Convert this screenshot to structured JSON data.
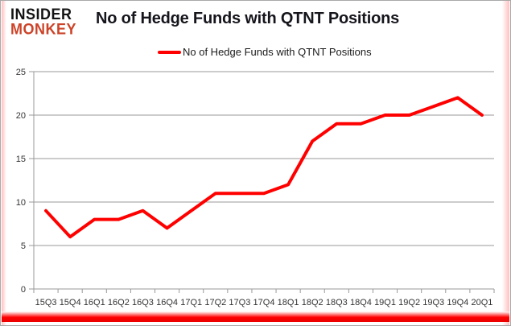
{
  "logo": {
    "line1": "INSIDER",
    "line2": "MONKEY"
  },
  "title": "No of Hedge Funds with QTNT Positions",
  "legend": {
    "label": "No of Hedge Funds with QTNT Positions"
  },
  "colors": {
    "series": "#ff0000",
    "logo_accent": "#cc4328",
    "grid": "#9a9a9a",
    "axis": "#9a9a9a",
    "axis_text": "#333333",
    "bottom_bar": "#ff0000"
  },
  "chart_data": {
    "type": "line",
    "title": "No of Hedge Funds with QTNT Positions",
    "categories": [
      "15Q3",
      "15Q4",
      "16Q1",
      "16Q2",
      "16Q3",
      "16Q4",
      "17Q1",
      "17Q2",
      "17Q3",
      "17Q4",
      "18Q1",
      "18Q2",
      "18Q3",
      "18Q4",
      "19Q1",
      "19Q2",
      "19Q3",
      "19Q4",
      "20Q1"
    ],
    "series": [
      {
        "name": "No of Hedge Funds with QTNT Positions",
        "values": [
          9,
          6,
          8,
          8,
          9,
          7,
          9,
          11,
          11,
          11,
          12,
          17,
          19,
          19,
          20,
          20,
          21,
          22,
          20
        ]
      }
    ],
    "xlabel": "",
    "ylabel": "",
    "ylim": [
      0,
      25
    ],
    "yticks": [
      0,
      5,
      10,
      15,
      20,
      25
    ],
    "grid": true,
    "legend_position": "top-center"
  }
}
